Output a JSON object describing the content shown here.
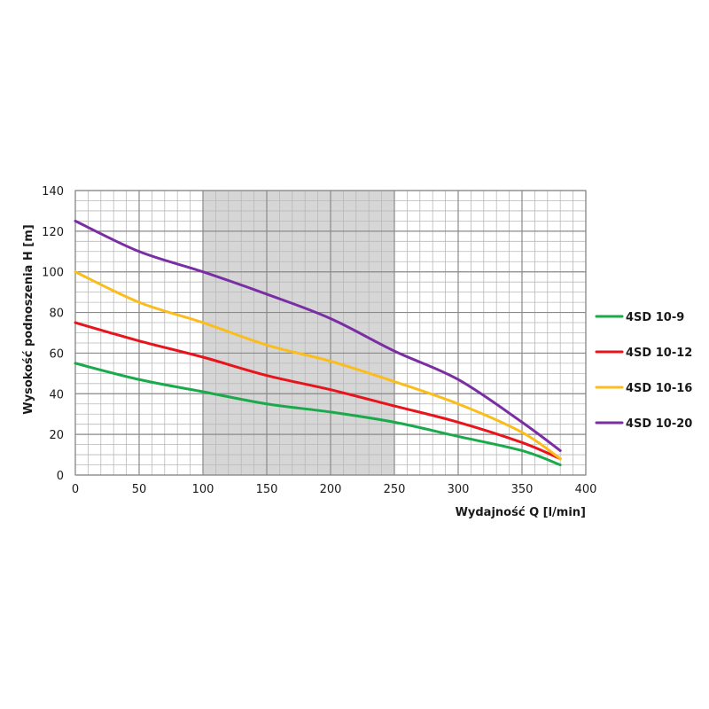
{
  "chart_data": {
    "type": "line",
    "xlabel": "Wydajność Q [l/min]",
    "ylabel": "Wysokość podnoszenia H [m]",
    "xlim": [
      0,
      400
    ],
    "ylim": [
      0,
      140
    ],
    "x_ticks": [
      0,
      50,
      100,
      150,
      200,
      250,
      300,
      350,
      400
    ],
    "y_ticks": [
      0,
      20,
      40,
      60,
      80,
      100,
      120,
      140
    ],
    "x_minor_step": 10,
    "y_minor_step": 5,
    "grid": true,
    "shaded_range": [
      100,
      250
    ],
    "legend_position": "right",
    "series": [
      {
        "name": "4SD 10-9",
        "color": "#1aaa4b",
        "points": [
          [
            0,
            55
          ],
          [
            50,
            47
          ],
          [
            100,
            41
          ],
          [
            150,
            35
          ],
          [
            200,
            31
          ],
          [
            250,
            26
          ],
          [
            300,
            19
          ],
          [
            350,
            12
          ],
          [
            380,
            5
          ]
        ]
      },
      {
        "name": "4SD 10-12",
        "color": "#e8141b",
        "points": [
          [
            0,
            75
          ],
          [
            50,
            66
          ],
          [
            100,
            58
          ],
          [
            150,
            49
          ],
          [
            200,
            42
          ],
          [
            250,
            34
          ],
          [
            300,
            26
          ],
          [
            350,
            16
          ],
          [
            380,
            8
          ]
        ]
      },
      {
        "name": "4SD 10-16",
        "color": "#fbbd1c",
        "points": [
          [
            0,
            100
          ],
          [
            50,
            85
          ],
          [
            100,
            75
          ],
          [
            150,
            64
          ],
          [
            200,
            56
          ],
          [
            250,
            46
          ],
          [
            300,
            35
          ],
          [
            350,
            21
          ],
          [
            380,
            8
          ]
        ]
      },
      {
        "name": "4SD 10-20",
        "color": "#7a2ea3",
        "points": [
          [
            0,
            125
          ],
          [
            50,
            110
          ],
          [
            100,
            100
          ],
          [
            150,
            89
          ],
          [
            200,
            77
          ],
          [
            250,
            61
          ],
          [
            300,
            47
          ],
          [
            350,
            26
          ],
          [
            380,
            12
          ]
        ]
      }
    ]
  }
}
